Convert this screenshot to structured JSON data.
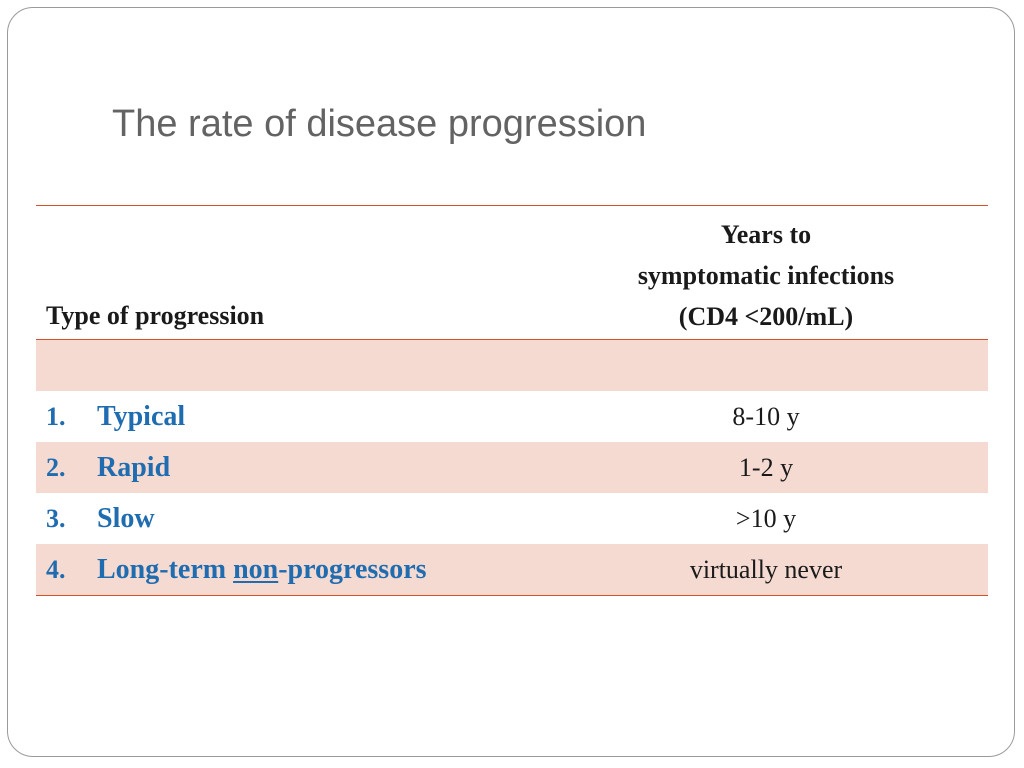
{
  "slide": {
    "title": "The rate of disease progression"
  },
  "table": {
    "header": {
      "left": "Type of progression",
      "right_lines": [
        "Years to",
        "symptomatic infections",
        "(CD4 <200/mL)"
      ]
    },
    "rows": [
      {
        "num": "1.",
        "label": "Typical",
        "value": "8-10 y"
      },
      {
        "num": "2.",
        "label": "Rapid",
        "value": "1-2 y"
      },
      {
        "num": "3.",
        "label": "Slow",
        "value": ">10 y"
      },
      {
        "num": "4.",
        "label_pre": "Long-term ",
        "label_under": "non",
        "label_post": "-progressors",
        "value": "virtually never"
      }
    ]
  },
  "colors": {
    "title": "#636363",
    "rule": "#d2522c",
    "row_shade": "#f5dad2",
    "label_blue": "#1f6db0"
  }
}
